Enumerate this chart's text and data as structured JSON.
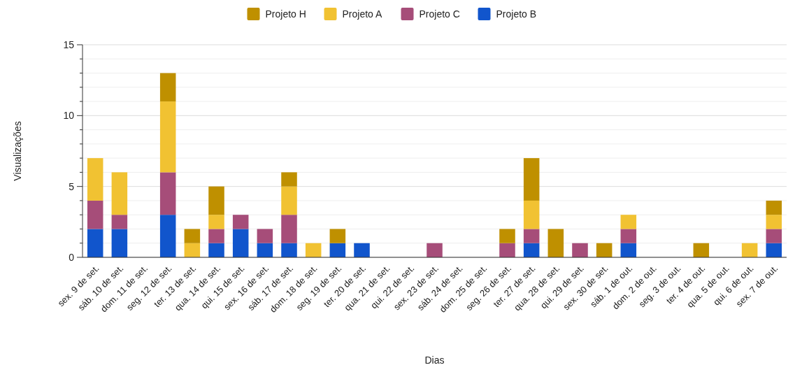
{
  "chart_data": {
    "type": "bar",
    "stacked": true,
    "xlabel": "Dias",
    "ylabel": "Visualizações",
    "legend": "top",
    "grid": true,
    "categories": [
      "sex. 9 de set.",
      "sáb. 10 de set.",
      "dom. 11 de set.",
      "seg. 12 de set.",
      "ter. 13 de set.",
      "qua. 14 de set.",
      "qui. 15 de set.",
      "sex. 16 de set.",
      "sáb. 17 de set.",
      "dom. 18 de set.",
      "seg. 19 de set.",
      "ter. 20 de set.",
      "qua. 21 de set.",
      "qui. 22 de set.",
      "sex. 23 de set.",
      "sáb. 24 de set.",
      "dom. 25 de set.",
      "seg. 26 de set.",
      "ter. 27 de set.",
      "qua. 28 de set.",
      "qui. 29 de set.",
      "sex. 30 de set.",
      "sáb. 1 de out.",
      "dom. 2 de out.",
      "seg. 3 de out.",
      "ter. 4 de out.",
      "qua. 5 de out.",
      "qui. 6 de out.",
      "sex. 7 de out."
    ],
    "series": [
      {
        "name": "Projeto B",
        "color": "#1155cc",
        "values": [
          2,
          2,
          0,
          3,
          0,
          1,
          2,
          1,
          1,
          0,
          1,
          1,
          0,
          0,
          0,
          0,
          0,
          0,
          1,
          0,
          0,
          0,
          1,
          0,
          0,
          0,
          0,
          0,
          1
        ]
      },
      {
        "name": "Projeto C",
        "color": "#a64d79",
        "values": [
          2,
          1,
          0,
          3,
          0,
          1,
          1,
          1,
          2,
          0,
          0,
          0,
          0,
          0,
          1,
          0,
          0,
          1,
          1,
          0,
          1,
          0,
          1,
          0,
          0,
          0,
          0,
          0,
          1
        ]
      },
      {
        "name": "Projeto A",
        "color": "#f1c232",
        "values": [
          3,
          3,
          0,
          5,
          1,
          1,
          0,
          0,
          2,
          1,
          0,
          0,
          0,
          0,
          0,
          0,
          0,
          0,
          2,
          0,
          0,
          0,
          1,
          0,
          0,
          0,
          0,
          1,
          1
        ]
      },
      {
        "name": "Projeto H",
        "color": "#bf9000",
        "values": [
          0,
          0,
          0,
          2,
          1,
          2,
          0,
          0,
          1,
          0,
          1,
          0,
          0,
          0,
          0,
          0,
          0,
          1,
          3,
          2,
          0,
          1,
          0,
          0,
          0,
          1,
          0,
          0,
          1
        ]
      }
    ],
    "ylim": [
      0,
      15
    ],
    "yticks": [
      0,
      {
        "value": 1,
        "label": null
      },
      {
        "value": 2,
        "label": null
      },
      {
        "value": 3,
        "label": null
      },
      {
        "value": 4,
        "label": null
      },
      5,
      {
        "value": 6,
        "label": null
      },
      {
        "value": 7,
        "label": null
      },
      {
        "value": 8,
        "label": null
      },
      {
        "value": 9,
        "label": null
      },
      10,
      {
        "value": 11,
        "label": null
      },
      {
        "value": 12,
        "label": null
      },
      {
        "value": 13,
        "label": null
      },
      {
        "value": 14,
        "label": null
      },
      15
    ]
  }
}
